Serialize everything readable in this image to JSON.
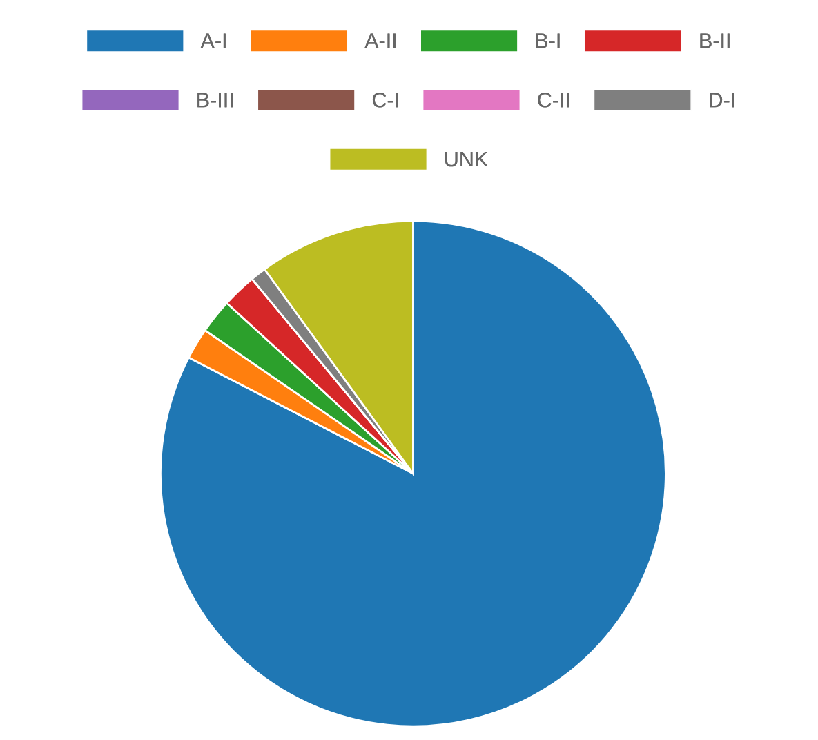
{
  "chart_data": {
    "type": "pie",
    "categories": [
      "A-I",
      "A-II",
      "B-I",
      "B-II",
      "B-III",
      "C-I",
      "C-II",
      "D-I",
      "UNK"
    ],
    "values": [
      82.6,
      2,
      2.2,
      2.2,
      0,
      0,
      0,
      1,
      10
    ],
    "colors": [
      "#1f77b4",
      "#ff7f0e",
      "#2ca02c",
      "#d62728",
      "#9467bd",
      "#8c564b",
      "#e377c2",
      "#7f7f7f",
      "#bcbd22"
    ],
    "legend": "top"
  }
}
